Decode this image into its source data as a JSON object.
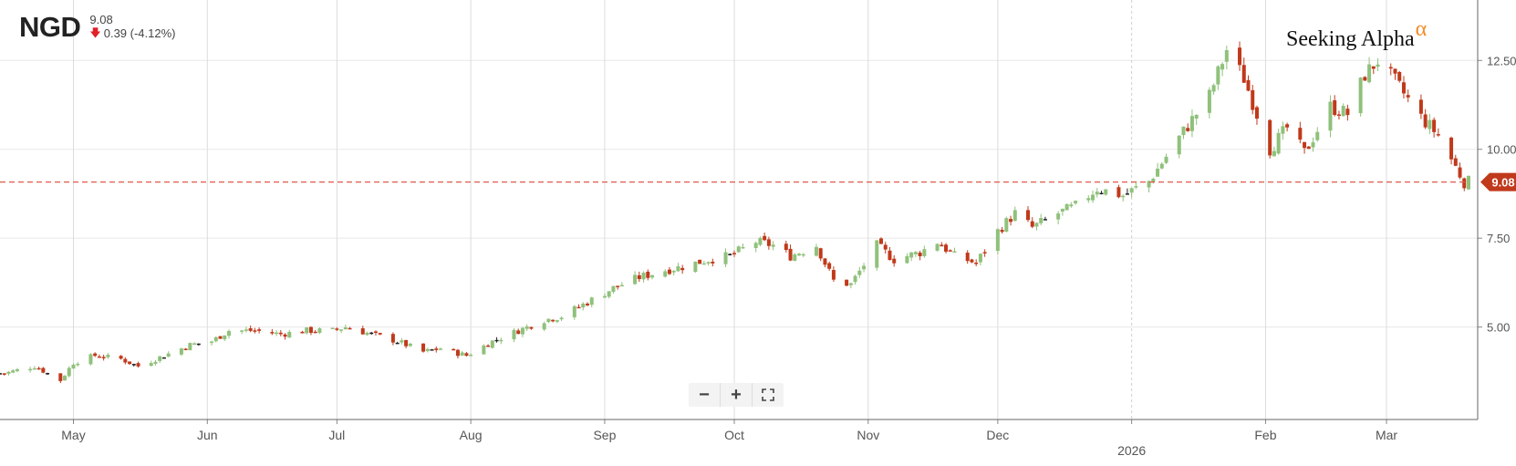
{
  "header": {
    "ticker": "NGD",
    "price": "9.08",
    "change": "0.39 (-4.12%)",
    "direction_icon": "down-arrow-icon"
  },
  "brand": {
    "name": "Seeking Alpha",
    "alpha": "α"
  },
  "current_price_label": "9.08",
  "zoom": {
    "minus": "−",
    "plus": "+",
    "fullscreen_icon": "fullscreen-icon"
  },
  "colors": {
    "up": "#8fc17b",
    "down": "#c0391b",
    "neutral": "#222222",
    "price_line": "#e05a4a",
    "grid": "#e8e8e8"
  },
  "chart_data": {
    "type": "candlestick",
    "ticker": "NGD",
    "x_month_labels": [
      "May",
      "Jun",
      "Jul",
      "Aug",
      "Sep",
      "Oct",
      "Nov",
      "Dec",
      "2026",
      "Feb",
      "Mar"
    ],
    "y_ticks": [
      "5.00",
      "7.50",
      "10.00",
      "12.50"
    ],
    "ylim": [
      2.4,
      14.2
    ],
    "current_price": 9.08,
    "grid": true,
    "series": [
      {
        "date": "2025-04-15",
        "close": 3.7
      },
      {
        "date": "2025-04-22",
        "close": 3.9
      },
      {
        "date": "2025-04-28",
        "close": 3.5
      },
      {
        "date": "2025-05-01",
        "close": 4.0
      },
      {
        "date": "2025-05-06",
        "close": 4.2
      },
      {
        "date": "2025-05-12",
        "close": 4.1
      },
      {
        "date": "2025-05-16",
        "close": 3.9
      },
      {
        "date": "2025-05-22",
        "close": 4.2
      },
      {
        "date": "2025-05-28",
        "close": 4.5
      },
      {
        "date": "2025-06-02",
        "close": 4.6
      },
      {
        "date": "2025-06-06",
        "close": 4.9
      },
      {
        "date": "2025-06-12",
        "close": 4.9
      },
      {
        "date": "2025-06-18",
        "close": 4.8
      },
      {
        "date": "2025-06-24",
        "close": 4.9
      },
      {
        "date": "2025-06-30",
        "close": 4.9
      },
      {
        "date": "2025-07-03",
        "close": 5.0
      },
      {
        "date": "2025-07-09",
        "close": 4.8
      },
      {
        "date": "2025-07-15",
        "close": 4.6
      },
      {
        "date": "2025-07-21",
        "close": 4.3
      },
      {
        "date": "2025-07-25",
        "close": 4.4
      },
      {
        "date": "2025-07-31",
        "close": 4.2
      },
      {
        "date": "2025-08-06",
        "close": 4.6
      },
      {
        "date": "2025-08-12",
        "close": 4.9
      },
      {
        "date": "2025-08-18",
        "close": 5.2
      },
      {
        "date": "2025-08-22",
        "close": 5.3
      },
      {
        "date": "2025-08-28",
        "close": 5.7
      },
      {
        "date": "2025-09-03",
        "close": 6.1
      },
      {
        "date": "2025-09-09",
        "close": 6.4
      },
      {
        "date": "2025-09-15",
        "close": 6.6
      },
      {
        "date": "2025-09-19",
        "close": 6.7
      },
      {
        "date": "2025-09-25",
        "close": 6.9
      },
      {
        "date": "2025-09-30",
        "close": 7.0
      },
      {
        "date": "2025-10-06",
        "close": 7.4
      },
      {
        "date": "2025-10-10",
        "close": 7.3
      },
      {
        "date": "2025-10-14",
        "close": 7.0
      },
      {
        "date": "2025-10-20",
        "close": 7.3
      },
      {
        "date": "2025-10-24",
        "close": 6.3
      },
      {
        "date": "2025-10-28",
        "close": 6.2
      },
      {
        "date": "2025-11-03",
        "close": 7.3
      },
      {
        "date": "2025-11-07",
        "close": 6.9
      },
      {
        "date": "2025-11-13",
        "close": 7.1
      },
      {
        "date": "2025-11-17",
        "close": 7.4
      },
      {
        "date": "2025-11-21",
        "close": 7.0
      },
      {
        "date": "2025-11-26",
        "close": 6.8
      },
      {
        "date": "2025-12-01",
        "close": 7.7
      },
      {
        "date": "2025-12-05",
        "close": 8.2
      },
      {
        "date": "2025-12-09",
        "close": 7.8
      },
      {
        "date": "2025-12-15",
        "close": 8.2
      },
      {
        "date": "2025-12-19",
        "close": 8.4
      },
      {
        "date": "2025-12-24",
        "close": 8.9
      },
      {
        "date": "2025-12-30",
        "close": 8.7
      },
      {
        "date": "2026-01-05",
        "close": 9.1
      },
      {
        "date": "2026-01-09",
        "close": 9.8
      },
      {
        "date": "2026-01-13",
        "close": 10.5
      },
      {
        "date": "2026-01-19",
        "close": 11.5
      },
      {
        "date": "2026-01-23",
        "close": 12.8
      },
      {
        "date": "2026-01-27",
        "close": 12.0
      },
      {
        "date": "2026-02-02",
        "close": 10.0
      },
      {
        "date": "2026-02-06",
        "close": 10.6
      },
      {
        "date": "2026-02-10",
        "close": 9.9
      },
      {
        "date": "2026-02-16",
        "close": 11.2
      },
      {
        "date": "2026-02-20",
        "close": 11.0
      },
      {
        "date": "2026-02-24",
        "close": 12.1
      },
      {
        "date": "2026-02-27",
        "close": 12.5
      },
      {
        "date": "2026-03-03",
        "close": 11.9
      },
      {
        "date": "2026-03-09",
        "close": 10.9
      },
      {
        "date": "2026-03-13",
        "close": 10.4
      },
      {
        "date": "2026-03-17",
        "close": 9.5
      },
      {
        "date": "2026-03-19",
        "close": 9.08
      }
    ]
  }
}
